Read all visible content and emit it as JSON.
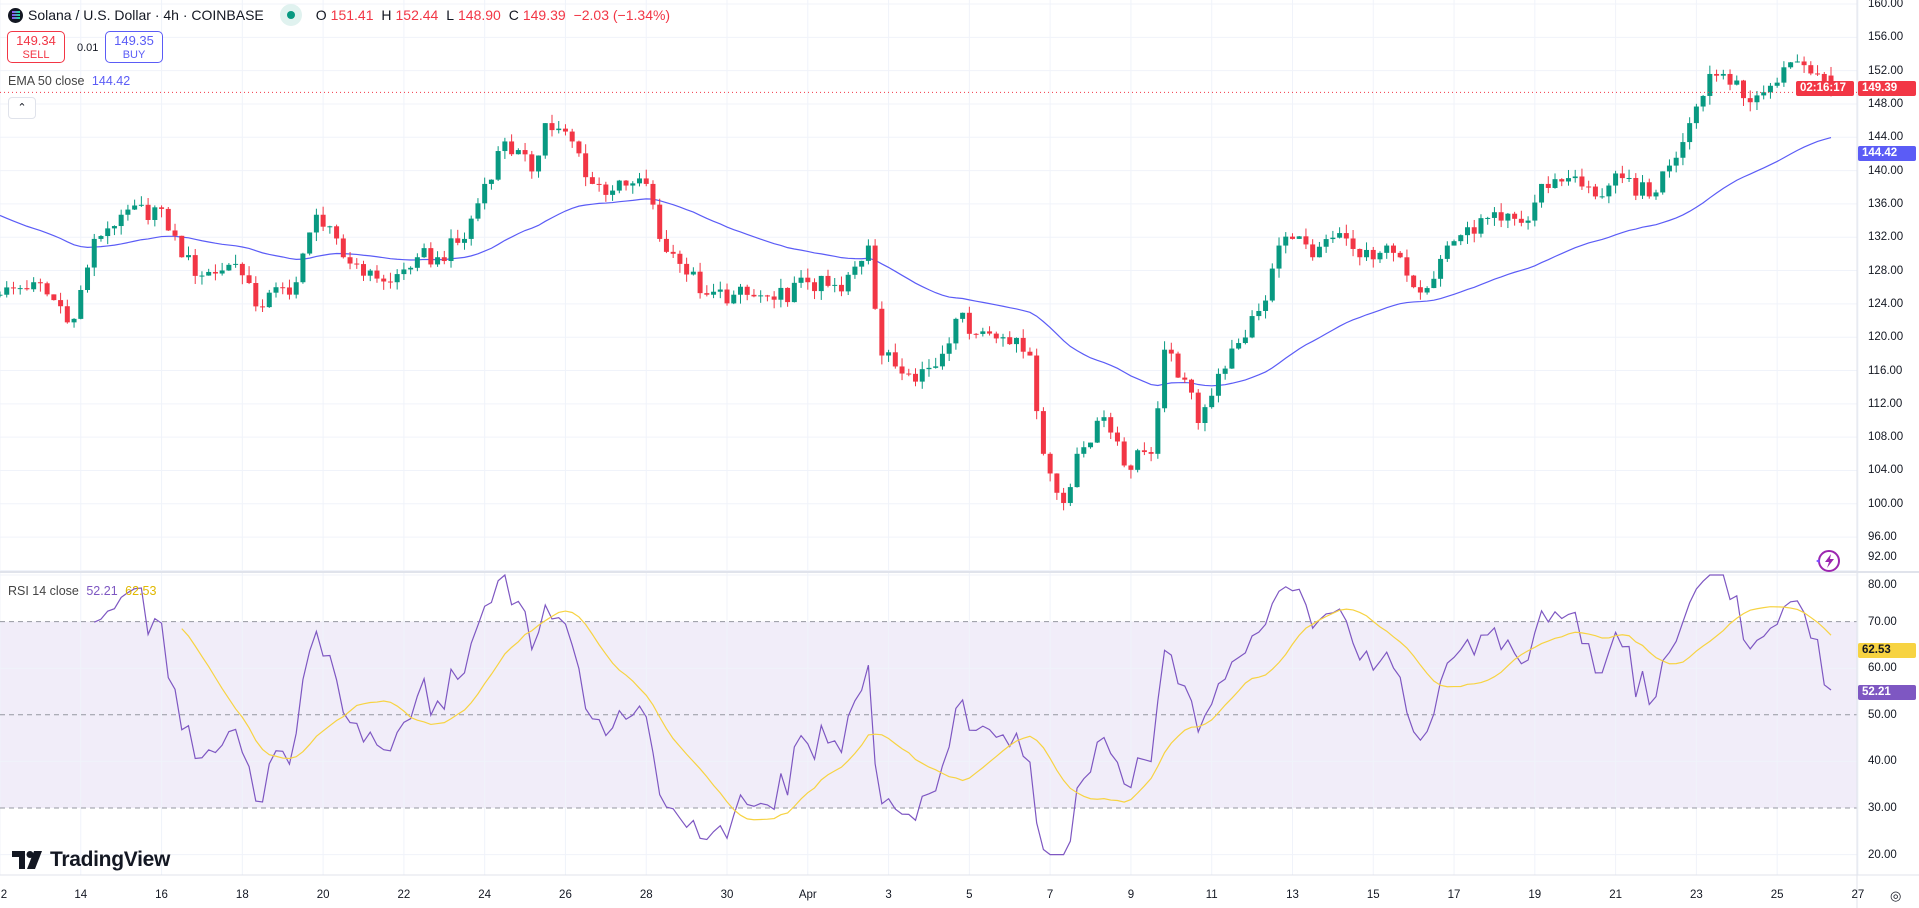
{
  "header": {
    "symbol_title": "Solana / U.S. Dollar · 4h · COINBASE",
    "ohlc": {
      "o_label": "O",
      "open": "151.41",
      "h_label": "H",
      "high": "152.44",
      "l_label": "L",
      "low": "148.90",
      "c_label": "C",
      "close": "149.39",
      "change": "−2.03 (−1.34%)"
    },
    "sell": {
      "price": "149.34",
      "label": "SELL"
    },
    "spread": "0.01",
    "buy": {
      "price": "149.35",
      "label": "BUY"
    }
  },
  "indicators": {
    "ema": {
      "name": "EMA 50 close",
      "value": "144.42"
    },
    "rsi": {
      "name": "RSI 14 close",
      "value": "52.21",
      "ma_value": "62.53"
    }
  },
  "price_axis": {
    "labels": [
      "160.00",
      "156.00",
      "152.00",
      "148.00",
      "144.00",
      "140.00",
      "136.00",
      "132.00",
      "128.00",
      "124.00",
      "120.00",
      "116.00",
      "112.00",
      "108.00",
      "104.00",
      "100.00",
      "96.00",
      "92.00"
    ],
    "current_price": "149.39",
    "countdown": "02:16:17",
    "ema_tag": "144.42"
  },
  "rsi_axis": {
    "labels": [
      "80.00",
      "70.00",
      "60.00",
      "50.00",
      "40.00",
      "30.00",
      "20.00"
    ],
    "rsi_tag": "52.21",
    "ma_tag": "62.53"
  },
  "time_axis": {
    "labels": [
      "2",
      "14",
      "16",
      "18",
      "20",
      "22",
      "24",
      "26",
      "28",
      "30",
      "Apr",
      "3",
      "5",
      "7",
      "9",
      "11",
      "13",
      "15",
      "17",
      "19",
      "21",
      "23",
      "25",
      "27"
    ]
  },
  "branding": {
    "logo_text": "TradingView"
  },
  "colors": {
    "up": "#089981",
    "down": "#f23645",
    "ema": "#5b5cf6",
    "rsi": "#7e57c2",
    "rsi_ma": "#f7d342",
    "rsi_band": "#f1edf9"
  },
  "chart_data": {
    "type": "candlestick",
    "interval": "4h",
    "ylim": [
      92,
      160
    ],
    "rsi_ylim": [
      20,
      80
    ],
    "rsi_levels": [
      70,
      50,
      30
    ],
    "close_anchors": [
      [
        "03-12 00",
        125.1
      ],
      [
        "03-12 20",
        126.6
      ],
      [
        "03-13 20",
        122.2
      ],
      [
        "03-14 08",
        131.8
      ],
      [
        "03-15 00",
        134.7
      ],
      [
        "03-16 00",
        135.4
      ],
      [
        "03-16 12",
        129.6
      ],
      [
        "03-17 00",
        127.4
      ],
      [
        "03-17 20",
        128.8
      ],
      [
        "03-18 08",
        123.7
      ],
      [
        "03-19 08",
        126.6
      ],
      [
        "03-19 20",
        134.7
      ],
      [
        "03-20 12",
        129.6
      ],
      [
        "03-21 04",
        128.0
      ],
      [
        "03-21 16",
        126.6
      ],
      [
        "03-22 08",
        129.6
      ],
      [
        "03-22 20",
        129.6
      ],
      [
        "03-23 12",
        131.8
      ],
      [
        "03-24 00",
        138.4
      ],
      [
        "03-24 12",
        143.5
      ],
      [
        "03-25 04",
        139.9
      ],
      [
        "03-25 12",
        145.7
      ],
      [
        "03-26 04",
        143.5
      ],
      [
        "03-26 16",
        138.4
      ],
      [
        "03-27 04",
        137.6
      ],
      [
        "03-28 00",
        138.4
      ],
      [
        "03-28 08",
        131.8
      ],
      [
        "03-28 20",
        128.8
      ],
      [
        "03-29 12",
        125.1
      ],
      [
        "03-30 04",
        125.1
      ],
      [
        "03-31 04",
        124.5
      ],
      [
        "04-01 00",
        126.6
      ],
      [
        "04-01 20",
        125.5
      ],
      [
        "04-02 12",
        131.0
      ],
      [
        "04-02 20",
        117.8
      ],
      [
        "04-03 12",
        115.6
      ],
      [
        "04-04 04",
        116.5
      ],
      [
        "04-04 16",
        122.2
      ],
      [
        "04-05 08",
        120.7
      ],
      [
        "04-05 20",
        120.0
      ],
      [
        "04-06 12",
        117.8
      ],
      [
        "04-06 20",
        106.0
      ],
      [
        "04-07 08",
        100.1
      ],
      [
        "04-07 16",
        106.0
      ],
      [
        "04-08 08",
        110.4
      ],
      [
        "04-08 20",
        104.6
      ],
      [
        "04-09 12",
        106.0
      ],
      [
        "04-09 20",
        118.5
      ],
      [
        "04-10 08",
        114.9
      ],
      [
        "04-10 16",
        109.7
      ],
      [
        "04-11 04",
        115.6
      ],
      [
        "04-11 16",
        119.3
      ],
      [
        "04-12 08",
        124.4
      ],
      [
        "04-12 16",
        131.0
      ],
      [
        "04-13 00",
        131.8
      ],
      [
        "04-13 12",
        129.6
      ],
      [
        "04-14 04",
        132.5
      ],
      [
        "04-14 16",
        129.6
      ],
      [
        "04-15 08",
        131.0
      ],
      [
        "04-15 20",
        127.4
      ],
      [
        "04-16 08",
        125.9
      ],
      [
        "04-16 20",
        131.0
      ],
      [
        "04-17 08",
        133.2
      ],
      [
        "04-18 04",
        134.0
      ],
      [
        "04-18 20",
        134.0
      ],
      [
        "04-19 04",
        138.4
      ],
      [
        "04-19 20",
        139.1
      ],
      [
        "04-20 12",
        136.9
      ],
      [
        "04-21 04",
        139.1
      ],
      [
        "04-21 20",
        136.9
      ],
      [
        "04-22 08",
        140.6
      ],
      [
        "04-22 20",
        145.7
      ],
      [
        "04-23 08",
        151.6
      ],
      [
        "04-23 16",
        151.6
      ],
      [
        "04-24 04",
        148.7
      ],
      [
        "04-24 16",
        149.4
      ],
      [
        "04-25 04",
        152.4
      ],
      [
        "04-25 12",
        153.1
      ],
      [
        "04-26 00",
        151.6
      ],
      [
        "04-26 08",
        149.39
      ]
    ],
    "ema_start": 135.0
  }
}
